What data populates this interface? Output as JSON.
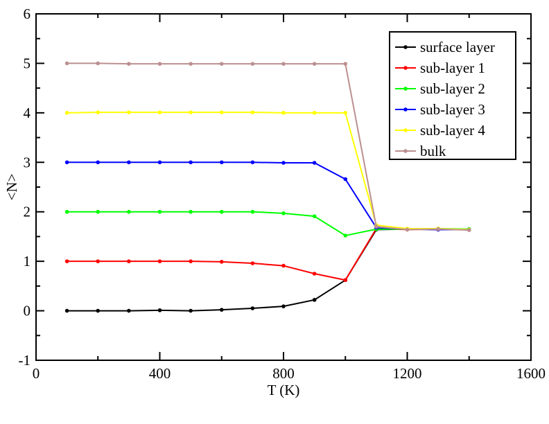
{
  "chart_data": {
    "type": "line",
    "title": "",
    "xlabel": "T (K)",
    "ylabel": "<N>",
    "xlim": [
      0,
      1600
    ],
    "ylim": [
      -1,
      6
    ],
    "xticks": [
      0,
      400,
      800,
      1200,
      1600
    ],
    "yticks": [
      -1,
      0,
      1,
      2,
      3,
      4,
      5,
      6
    ],
    "x_minor_step": 200,
    "y_minor_step": 0.5,
    "grid": false,
    "legend_position": "top-right",
    "x": [
      100,
      200,
      300,
      400,
      500,
      600,
      700,
      800,
      900,
      1000,
      1100,
      1200,
      1300,
      1400
    ],
    "series": [
      {
        "name": "surface layer",
        "color": "#000000",
        "values": [
          0.0,
          0.0,
          0.0,
          0.01,
          0.0,
          0.02,
          0.05,
          0.09,
          0.22,
          0.62,
          1.64,
          1.65,
          1.64,
          1.65
        ]
      },
      {
        "name": "sub-layer 1",
        "color": "#ff0000",
        "values": [
          1.0,
          1.0,
          1.0,
          1.0,
          1.0,
          0.99,
          0.96,
          0.91,
          0.75,
          0.62,
          1.66,
          1.64,
          1.65,
          1.64
        ]
      },
      {
        "name": "sub-layer 2",
        "color": "#00ff00",
        "values": [
          2.0,
          2.0,
          2.0,
          2.0,
          2.0,
          2.0,
          2.0,
          1.97,
          1.91,
          1.52,
          1.65,
          1.65,
          1.66,
          1.65
        ]
      },
      {
        "name": "sub-layer 3",
        "color": "#0000ff",
        "values": [
          3.0,
          3.0,
          3.0,
          3.0,
          3.0,
          3.0,
          3.0,
          2.99,
          2.99,
          2.66,
          1.68,
          1.65,
          1.64,
          1.64
        ]
      },
      {
        "name": "sub-layer 4",
        "color": "#ffff00",
        "values": [
          4.0,
          4.01,
          4.01,
          4.01,
          4.01,
          4.01,
          4.01,
          4.0,
          4.0,
          4.0,
          1.73,
          1.66,
          1.66,
          1.64
        ]
      },
      {
        "name": "bulk",
        "color": "#bc8f8f",
        "values": [
          5.0,
          5.0,
          4.99,
          4.99,
          4.99,
          4.99,
          4.99,
          4.99,
          4.99,
          4.99,
          1.7,
          1.64,
          1.65,
          1.63
        ]
      }
    ]
  }
}
